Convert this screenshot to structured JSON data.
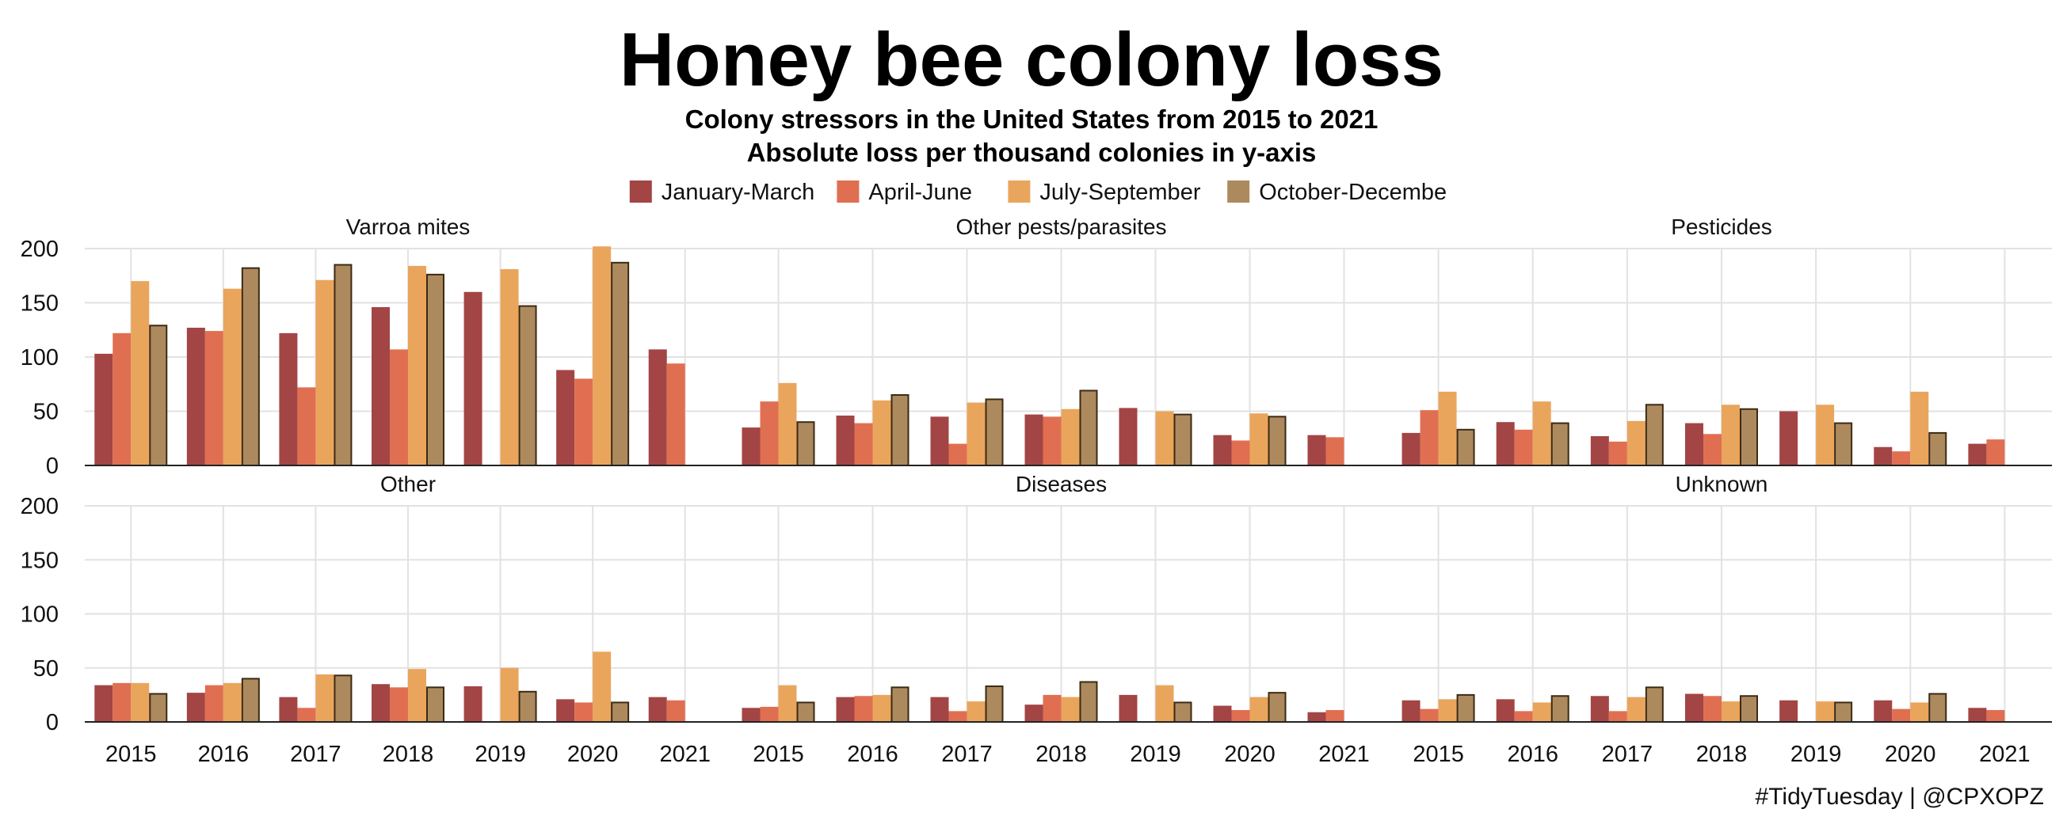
{
  "title": "Honey bee colony loss",
  "subtitle_line1": "Colony stressors in the United States from 2015 to 2021",
  "subtitle_line2": "Absolute loss per thousand colonies in y-axis",
  "caption": "#TidyTuesday | @CPXOPZ",
  "colors": {
    "January-March": "#a34545",
    "April-June": "#e06f52",
    "July-September": "#eaa55c",
    "October-Decembe": "#ad8a5e"
  },
  "chart_data": {
    "type": "bar",
    "layout": "faceted grouped bars, 2 rows x 3 columns, shared y axis",
    "categories": [
      "2015",
      "2016",
      "2017",
      "2018",
      "2019",
      "2020",
      "2021"
    ],
    "legend": {
      "placement": "top-center",
      "entries": [
        "January-March",
        "April-June",
        "July-September",
        "October-Decembe"
      ]
    },
    "ylim": [
      0,
      200
    ],
    "yticks": [
      0,
      50,
      100,
      150,
      200
    ],
    "grid": true,
    "facets": [
      {
        "name": "Varroa mites",
        "series": [
          {
            "name": "January-March",
            "values": [
              103,
              127,
              122,
              146,
              160,
              88,
              107
            ]
          },
          {
            "name": "April-June",
            "values": [
              122,
              124,
              72,
              107,
              null,
              80,
              94
            ]
          },
          {
            "name": "July-September",
            "values": [
              170,
              163,
              171,
              184,
              181,
              202,
              null
            ]
          },
          {
            "name": "October-Decembe",
            "values": [
              129,
              182,
              185,
              176,
              147,
              187,
              null
            ]
          }
        ]
      },
      {
        "name": "Other pests/parasites",
        "series": [
          {
            "name": "January-March",
            "values": [
              35,
              46,
              45,
              47,
              53,
              28,
              28
            ]
          },
          {
            "name": "April-June",
            "values": [
              59,
              39,
              20,
              45,
              null,
              23,
              26
            ]
          },
          {
            "name": "July-September",
            "values": [
              76,
              60,
              58,
              52,
              50,
              48,
              null
            ]
          },
          {
            "name": "October-Decembe",
            "values": [
              40,
              65,
              61,
              69,
              47,
              45,
              null
            ]
          }
        ]
      },
      {
        "name": "Pesticides",
        "series": [
          {
            "name": "January-March",
            "values": [
              30,
              40,
              27,
              39,
              50,
              17,
              20
            ]
          },
          {
            "name": "April-June",
            "values": [
              51,
              33,
              22,
              29,
              null,
              13,
              24
            ]
          },
          {
            "name": "July-September",
            "values": [
              68,
              59,
              41,
              56,
              56,
              68,
              null
            ]
          },
          {
            "name": "October-Decembe",
            "values": [
              33,
              39,
              56,
              52,
              39,
              30,
              null
            ]
          }
        ]
      },
      {
        "name": "Other",
        "series": [
          {
            "name": "January-March",
            "values": [
              34,
              27,
              23,
              35,
              33,
              21,
              23
            ]
          },
          {
            "name": "April-June",
            "values": [
              36,
              34,
              13,
              32,
              null,
              18,
              20
            ]
          },
          {
            "name": "July-September",
            "values": [
              36,
              36,
              44,
              49,
              50,
              65,
              null
            ]
          },
          {
            "name": "October-Decembe",
            "values": [
              26,
              40,
              43,
              32,
              28,
              18,
              null
            ]
          }
        ]
      },
      {
        "name": "Diseases",
        "series": [
          {
            "name": "January-March",
            "values": [
              13,
              23,
              23,
              16,
              25,
              15,
              9
            ]
          },
          {
            "name": "April-June",
            "values": [
              14,
              24,
              10,
              25,
              null,
              11,
              11
            ]
          },
          {
            "name": "July-September",
            "values": [
              34,
              25,
              19,
              23,
              34,
              23,
              null
            ]
          },
          {
            "name": "October-Decembe",
            "values": [
              18,
              32,
              33,
              37,
              18,
              27,
              null
            ]
          }
        ]
      },
      {
        "name": "Unknown",
        "series": [
          {
            "name": "January-March",
            "values": [
              20,
              21,
              24,
              26,
              20,
              20,
              13
            ]
          },
          {
            "name": "April-June",
            "values": [
              12,
              10,
              10,
              24,
              null,
              12,
              11
            ]
          },
          {
            "name": "July-September",
            "values": [
              21,
              18,
              23,
              19,
              19,
              18,
              null
            ]
          },
          {
            "name": "October-Decembe",
            "values": [
              25,
              24,
              32,
              24,
              18,
              26,
              null
            ]
          }
        ]
      }
    ]
  }
}
